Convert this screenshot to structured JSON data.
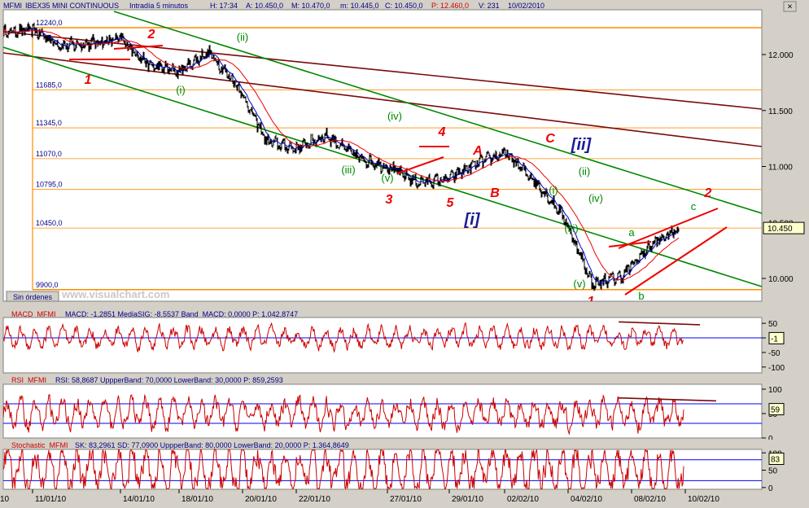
{
  "colors": {
    "bg": "#ffffff",
    "frame": "#d4d0c8",
    "price": "#000000",
    "blue": "#0000cc",
    "red": "#ee0000",
    "green": "#008800",
    "brown": "#7a0a0a",
    "orange": "#ff8c00",
    "navy": "#000088"
  },
  "main_panel": {
    "header": {
      "symbol": "MFMI",
      "name": "IBEX35 MINI CONTINUOUS",
      "period": "Intradía 5 minutos",
      "H": "H: 17:34",
      "A": "A: 10.450,0",
      "M": "M: 10.470,0",
      "m": "m: 10.445,0",
      "C": "C: 10.450,0",
      "P": "P: 12.460,0",
      "V": "V: 231",
      "date": "10/02/2010"
    },
    "left_labels": [
      "12240,0",
      "11685,0",
      "11345,0",
      "11070,0",
      "10795,0",
      "10450,0",
      "9900,0"
    ],
    "y_ticks": [
      "12.000",
      "11.500",
      "11.000",
      "10.000"
    ],
    "partial_tick": "10.500",
    "last_price": "10.450",
    "watermark": "www.visualchart.com",
    "button": "Sin órdenes",
    "close_icon": "×"
  },
  "wave_labels": {
    "red": [
      "1",
      "2",
      "3",
      "4",
      "5",
      "A",
      "B",
      "C",
      "1",
      "2"
    ],
    "green": [
      "(ii)",
      "(i)",
      "(iv)",
      "(iii)",
      "(v)",
      "(ii)",
      "(i)",
      "(iv)",
      "(iii)",
      "(v)",
      "a",
      "b",
      "c"
    ],
    "navy": [
      "[i]",
      "[ii]"
    ]
  },
  "macd": {
    "title": "MACD_MFMI",
    "values": "MACD: -1,2851  MediaSIG: -8,5537  Band_MACD: 0,0000  P: 1.042,8747",
    "ticks": [
      "50",
      "0",
      "-50",
      "-100"
    ],
    "last": "-1"
  },
  "rsi": {
    "title": "RSI_MFMI",
    "values": "RSI: 58,8687  UppperBand: 70,0000  LowerBand: 30,0000  P: 859,2593",
    "ticks": [
      "100",
      "50",
      "0"
    ],
    "last": "59"
  },
  "stoch": {
    "title": "Stochastic_MFMI",
    "values": "SK: 83,2961  SD: 77,0900  UppperBand: 80,0000  LowerBand: 20,0000  P: 1.364,8649",
    "ticks": [
      "100",
      "50",
      "0"
    ],
    "last": "83"
  },
  "x_axis": {
    "labels": [
      "11/01/10",
      "14/01/10",
      "18/01/10",
      "20/01/10",
      "22/01/10",
      "27/01/10",
      "29/01/10",
      "02/02/10",
      "04/02/10",
      "08/02/10",
      "10/02/10"
    ],
    "edge_label": "10"
  },
  "chart_data": {
    "type": "line",
    "title": "MFMI - IBEX35 MINI CONTINUOUS - Intradía 5 minutos",
    "ylim": [
      9850,
      12280
    ],
    "x": [
      "08/01/10",
      "11/01/10",
      "12/01/10",
      "13/01/10",
      "14/01/10",
      "15/01/10",
      "18/01/10",
      "19/01/10",
      "20/01/10",
      "21/01/10",
      "22/01/10",
      "25/01/10",
      "26/01/10",
      "27/01/10",
      "28/01/10",
      "29/01/10",
      "01/02/10",
      "02/02/10",
      "03/02/10",
      "04/02/10",
      "05/02/10",
      "08/02/10",
      "09/02/10",
      "10/02/10"
    ],
    "series": [
      {
        "values": [
          12200,
          12220,
          12080,
          12100,
          12140,
          11900,
          11850,
          12020,
          11720,
          11220,
          11160,
          11280,
          11080,
          11000,
          10860,
          10880,
          11020,
          11120,
          10880,
          10560,
          9950,
          10020,
          10300,
          10450
        ]
      }
    ],
    "horizontal_levels": [
      12240,
      11685,
      11345,
      11070,
      10795,
      10450,
      9900
    ]
  }
}
